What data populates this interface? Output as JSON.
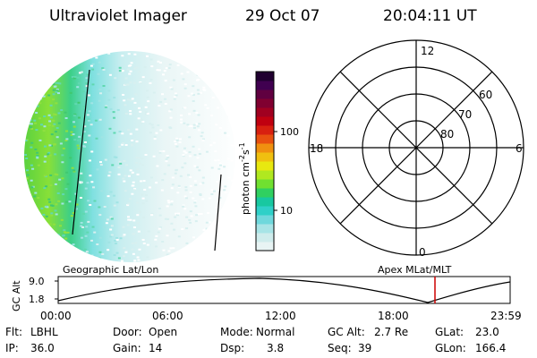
{
  "header": {
    "title": "Ultraviolet Imager",
    "date": "29 Oct 07",
    "time": "20:04:11 UT"
  },
  "colorbar": {
    "label_units": "photon cm",
    "label_exp1": "-2",
    "label_s": "s",
    "label_exp2": "-1",
    "tick_labels": [
      "100",
      "10"
    ],
    "colors": [
      "#e8f4f4",
      "#cfecec",
      "#a8e4e6",
      "#6fd8dc",
      "#2fd0c8",
      "#18c8a0",
      "#30d060",
      "#70e030",
      "#b0e820",
      "#e8e810",
      "#f0c010",
      "#f09010",
      "#e85010",
      "#d82010",
      "#c00010",
      "#a00020",
      "#800030",
      "#600040",
      "#400050",
      "#200030"
    ]
  },
  "polar_plot": {
    "mlt_labels": {
      "top": "12",
      "bottom": "0",
      "left": "18",
      "right": "6"
    },
    "lat_labels": [
      "60",
      "70",
      "80"
    ]
  },
  "orbit_panel": {
    "left_label": "Geographic Lat/Lon",
    "right_label": "Apex MLat/MLT",
    "ylabel": "GC Alt",
    "y_ticks": [
      "9.0",
      "1.8"
    ],
    "x_ticks": [
      "00:00",
      "06:00",
      "12:00",
      "18:00",
      "23:59"
    ],
    "marker_color": "#cc0000"
  },
  "footer": {
    "flt_label": "Flt:",
    "flt_value": "LBHL",
    "ip_label": "IP:",
    "ip_value": "36.0",
    "door_label": "Door:",
    "door_value": "Open",
    "gain_label": "Gain:",
    "gain_value": "14",
    "mode_label": "Mode:",
    "mode_value": "Normal",
    "dsp_label": "Dsp:",
    "dsp_value": "3.8",
    "gcalt_label": "GC Alt:",
    "gcalt_value": "2.7 Re",
    "seq_label": "Seq:",
    "seq_value": "39",
    "glat_label": "GLat:",
    "glat_value": "23.0",
    "glon_label": "GLon:",
    "glon_value": "166.4"
  }
}
